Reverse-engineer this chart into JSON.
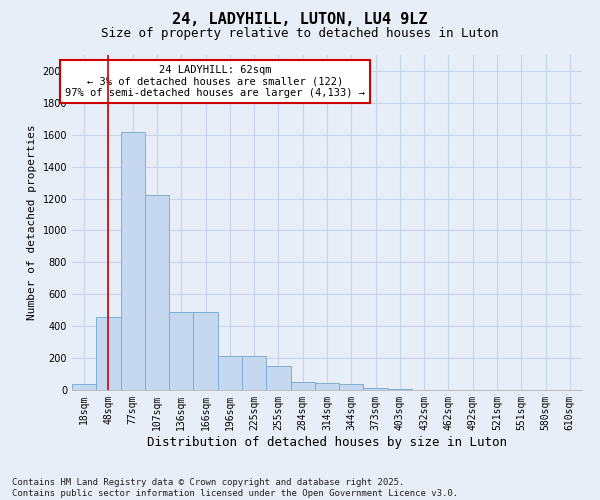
{
  "title": "24, LADYHILL, LUTON, LU4 9LZ",
  "subtitle": "Size of property relative to detached houses in Luton",
  "xlabel": "Distribution of detached houses by size in Luton",
  "ylabel": "Number of detached properties",
  "categories": [
    "18sqm",
    "48sqm",
    "77sqm",
    "107sqm",
    "136sqm",
    "166sqm",
    "196sqm",
    "225sqm",
    "255sqm",
    "284sqm",
    "314sqm",
    "344sqm",
    "373sqm",
    "403sqm",
    "432sqm",
    "462sqm",
    "492sqm",
    "521sqm",
    "551sqm",
    "580sqm",
    "610sqm"
  ],
  "values": [
    40,
    460,
    1620,
    1220,
    490,
    490,
    215,
    215,
    150,
    50,
    45,
    40,
    10,
    5,
    0,
    0,
    0,
    0,
    0,
    0,
    0
  ],
  "bar_color": "#c5d8ef",
  "bar_edge_color": "#7aafd4",
  "vline_x": 1,
  "vline_color": "#cc0000",
  "annotation_text": "24 LADYHILL: 62sqm\n← 3% of detached houses are smaller (122)\n97% of semi-detached houses are larger (4,133) →",
  "annotation_box_color": "#ffffff",
  "annotation_box_edge": "#cc0000",
  "ylim": [
    0,
    2100
  ],
  "yticks": [
    0,
    200,
    400,
    600,
    800,
    1000,
    1200,
    1400,
    1600,
    1800,
    2000
  ],
  "grid_color": "#c8d4e8",
  "background_color": "#e8eef8",
  "footer_text": "Contains HM Land Registry data © Crown copyright and database right 2025.\nContains public sector information licensed under the Open Government Licence v3.0.",
  "title_fontsize": 11,
  "subtitle_fontsize": 9,
  "xlabel_fontsize": 9,
  "ylabel_fontsize": 8,
  "tick_fontsize": 7,
  "footer_fontsize": 6.5,
  "annotation_fontsize": 7.5
}
